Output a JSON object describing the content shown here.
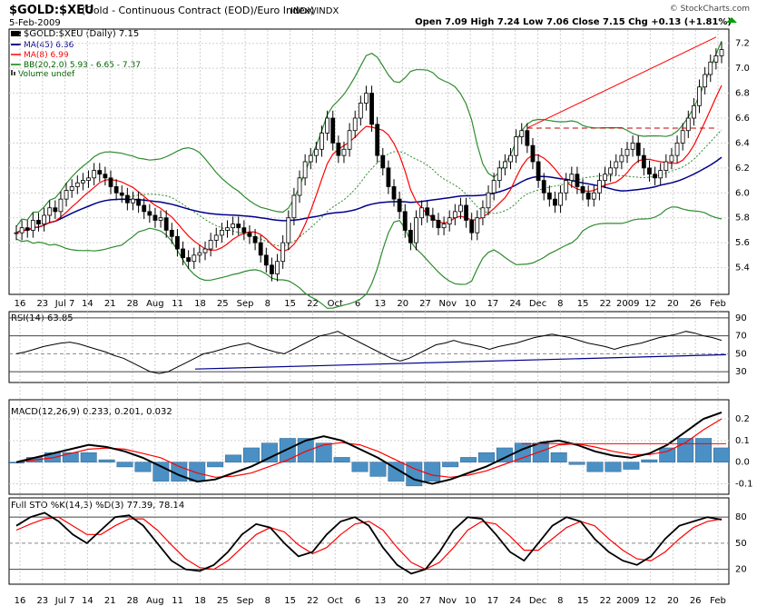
{
  "header": {
    "symbol": "$GOLD:$XEU",
    "description": "(Gold - Continuous Contract (EOD)/Euro Index)",
    "exchange": "INDX/INDX",
    "date": "5-Feb-2009",
    "brand": "© StockCharts.com",
    "quote": "Open 7.09  High 7.24  Low 7.06  Close 7.15  Chg +0.13 (+1.81%)"
  },
  "legend": {
    "main": "$GOLD:$XEU (Daily) 7.15",
    "ma45": "MA(45) 6.36",
    "ma8": "MA(8) 6.99",
    "bb": "BB(20,2.0) 5.93 - 6.65 - 7.37",
    "volume": "Volume undef"
  },
  "x_ticks": [
    "16",
    "23",
    "Jul 7",
    "14",
    "21",
    "28",
    "Aug",
    "11",
    "18",
    "25",
    "Sep",
    "8",
    "15",
    "22",
    "Oct",
    "6",
    "13",
    "20",
    "27",
    "Nov",
    "10",
    "17",
    "24",
    "Dec",
    "8",
    "15",
    "22",
    "2009",
    "12",
    "20",
    "26",
    "Feb"
  ],
  "chart_data": [
    {
      "type": "line",
      "title": "$GOLD:$XEU (Daily) 7.15",
      "y_ticks": [
        5.4,
        5.6,
        5.8,
        6.0,
        6.2,
        6.4,
        6.6,
        6.8,
        7.0,
        7.2
      ],
      "ylim": [
        5.2,
        7.3
      ],
      "grid": true,
      "close": [
        5.68,
        5.72,
        5.7,
        5.78,
        5.75,
        5.82,
        5.88,
        5.85,
        5.95,
        6.02,
        6.05,
        6.08,
        6.1,
        6.12,
        6.18,
        6.15,
        6.12,
        6.05,
        6.0,
        5.98,
        5.92,
        5.95,
        5.9,
        5.85,
        5.82,
        5.78,
        5.8,
        5.7,
        5.65,
        5.55,
        5.48,
        5.45,
        5.5,
        5.52,
        5.55,
        5.62,
        5.66,
        5.7,
        5.72,
        5.75,
        5.72,
        5.68,
        5.65,
        5.6,
        5.5,
        5.42,
        5.35,
        5.45,
        5.6,
        5.8,
        5.98,
        6.12,
        6.25,
        6.3,
        6.35,
        6.48,
        6.6,
        6.4,
        6.3,
        6.35,
        6.5,
        6.6,
        6.72,
        6.8,
        6.55,
        6.3,
        6.2,
        6.05,
        5.95,
        5.85,
        5.7,
        5.6,
        5.8,
        5.88,
        5.82,
        5.78,
        5.72,
        5.75,
        5.8,
        5.85,
        5.9,
        5.78,
        5.68,
        5.8,
        5.88,
        6.0,
        6.1,
        6.2,
        6.25,
        6.3,
        6.45,
        6.5,
        6.38,
        6.25,
        6.1,
        6.0,
        5.95,
        5.9,
        6.0,
        6.1,
        6.15,
        6.05,
        6.0,
        5.95,
        6.0,
        6.1,
        6.15,
        6.2,
        6.25,
        6.3,
        6.35,
        6.4,
        6.3,
        6.2,
        6.15,
        6.12,
        6.18,
        6.25,
        6.3,
        6.4,
        6.5,
        6.6,
        6.7,
        6.85,
        6.95,
        7.05,
        7.1,
        7.15
      ]
    },
    {
      "type": "line",
      "title": "RSI(14) 63.85",
      "y_ticks": [
        30,
        50,
        70,
        90
      ],
      "ylim": [
        20,
        95
      ],
      "series": [
        {
          "name": "RSI(14)",
          "values": [
            50,
            52,
            55,
            58,
            60,
            62,
            63,
            61,
            58,
            55,
            52,
            48,
            45,
            40,
            35,
            30,
            28,
            30,
            35,
            40,
            45,
            50,
            52,
            55,
            58,
            60,
            62,
            58,
            55,
            52,
            50,
            55,
            60,
            65,
            70,
            72,
            75,
            70,
            65,
            60,
            55,
            50,
            45,
            42,
            45,
            50,
            55,
            60,
            62,
            65,
            62,
            60,
            58,
            55,
            58,
            60,
            62,
            65,
            68,
            70,
            72,
            70,
            68,
            65,
            62,
            60,
            58,
            55,
            58,
            60,
            62,
            65,
            68,
            70,
            72,
            75,
            73,
            70,
            68,
            65
          ]
        }
      ]
    },
    {
      "type": "line",
      "title": "MACD(12,26,9) 0.233, 0.201, 0.032",
      "y_ticks": [
        -0.1,
        0.0,
        0.1,
        0.2
      ],
      "ylim": [
        -0.14,
        0.28
      ],
      "series": [
        {
          "name": "MACD(12,26,9)",
          "values": [
            0.0,
            0.02,
            0.04,
            0.06,
            0.08,
            0.07,
            0.05,
            0.02,
            -0.02,
            -0.06,
            -0.09,
            -0.08,
            -0.05,
            -0.02,
            0.02,
            0.06,
            0.1,
            0.12,
            0.1,
            0.06,
            0.02,
            -0.03,
            -0.08,
            -0.1,
            -0.08,
            -0.05,
            -0.02,
            0.02,
            0.06,
            0.09,
            0.1,
            0.08,
            0.05,
            0.03,
            0.02,
            0.04,
            0.08,
            0.14,
            0.2,
            0.23
          ]
        },
        {
          "name": "Signal",
          "values": [
            0.0,
            0.01,
            0.02,
            0.04,
            0.06,
            0.065,
            0.06,
            0.04,
            0.02,
            -0.02,
            -0.05,
            -0.07,
            -0.065,
            -0.05,
            -0.02,
            0.01,
            0.05,
            0.08,
            0.09,
            0.08,
            0.05,
            0.01,
            -0.03,
            -0.06,
            -0.07,
            -0.06,
            -0.04,
            -0.01,
            0.02,
            0.05,
            0.08,
            0.085,
            0.07,
            0.05,
            0.035,
            0.035,
            0.05,
            0.09,
            0.15,
            0.2
          ]
        }
      ]
    },
    {
      "type": "line",
      "title": "Full STO %K(14,3) %D(3) 77.39, 78.14",
      "y_ticks": [
        20,
        50,
        80
      ],
      "ylim": [
        5,
        100
      ],
      "series": [
        {
          "name": "%K(14,3)",
          "values": [
            70,
            80,
            85,
            75,
            60,
            50,
            65,
            80,
            82,
            70,
            50,
            30,
            20,
            18,
            25,
            40,
            60,
            72,
            68,
            50,
            35,
            40,
            60,
            75,
            80,
            70,
            45,
            25,
            15,
            20,
            40,
            65,
            80,
            78,
            60,
            40,
            30,
            50,
            70,
            80,
            75,
            55,
            40,
            30,
            25,
            35,
            55,
            70,
            75,
            80,
            77
          ]
        },
        {
          "name": "%D(3)",
          "values": [
            65,
            72,
            78,
            80,
            70,
            60,
            60,
            70,
            78,
            78,
            65,
            48,
            32,
            22,
            20,
            30,
            45,
            60,
            68,
            63,
            48,
            38,
            45,
            60,
            72,
            75,
            65,
            45,
            28,
            20,
            28,
            45,
            65,
            75,
            72,
            58,
            42,
            42,
            55,
            68,
            75,
            70,
            55,
            42,
            32,
            30,
            40,
            55,
            68,
            75,
            78
          ]
        }
      ]
    }
  ]
}
